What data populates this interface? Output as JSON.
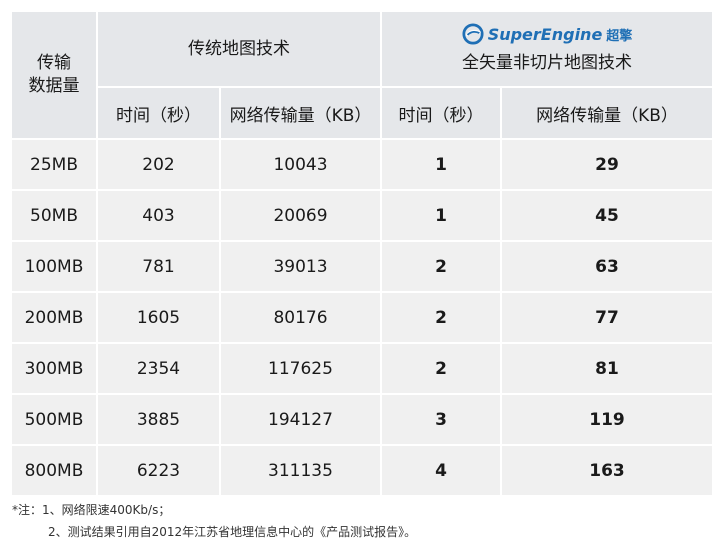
{
  "header": {
    "row_header": [
      "传输",
      "数据量"
    ],
    "traditional": "传统地图技术",
    "brand_en": "SuperEngine",
    "brand_cn": "超擎",
    "vector_title": "全矢量非切片地图技术",
    "time_label": "时间（秒）",
    "traffic_label": "网络传输量（KB）"
  },
  "rows": [
    {
      "size": "25MB",
      "t_time": "202",
      "t_kb": "10043",
      "v_time": "1",
      "v_kb": "29"
    },
    {
      "size": "50MB",
      "t_time": "403",
      "t_kb": "20069",
      "v_time": "1",
      "v_kb": "45"
    },
    {
      "size": "100MB",
      "t_time": "781",
      "t_kb": "39013",
      "v_time": "2",
      "v_kb": "63"
    },
    {
      "size": "200MB",
      "t_time": "1605",
      "t_kb": "80176",
      "v_time": "2",
      "v_kb": "77"
    },
    {
      "size": "300MB",
      "t_time": "2354",
      "t_kb": "117625",
      "v_time": "2",
      "v_kb": "81"
    },
    {
      "size": "500MB",
      "t_time": "3885",
      "t_kb": "194127",
      "v_time": "3",
      "v_kb": "119"
    },
    {
      "size": "800MB",
      "t_time": "6223",
      "t_kb": "311135",
      "v_time": "4",
      "v_kb": "163"
    }
  ],
  "notes": {
    "line1": "*注：1、网络限速400Kb/s；",
    "line2": "2、测试结果引用自2012年江苏省地理信息中心的《产品测试报告》。"
  },
  "colors": {
    "brand": "#1f6fb5",
    "cell_bg": "#f0f0f0",
    "header_bg": "#e5e7ea"
  },
  "icons": {
    "brand_logo": "superengine-logo-icon"
  }
}
